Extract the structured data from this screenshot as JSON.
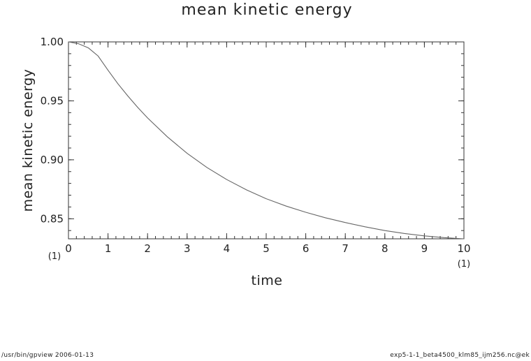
{
  "chart_data": {
    "type": "line",
    "title": "mean kinetic energy",
    "xlabel": "time",
    "ylabel": "mean kinetic energy",
    "x_unit": "(1)",
    "y_unit": "(1)",
    "xlim": [
      0,
      10
    ],
    "ylim": [
      0.833,
      1.0
    ],
    "x_ticks": [
      0,
      1,
      2,
      3,
      4,
      5,
      6,
      7,
      8,
      9,
      10
    ],
    "x_tick_labels": [
      "0",
      "1",
      "2",
      "3",
      "4",
      "5",
      "6",
      "7",
      "8",
      "9",
      "10"
    ],
    "y_ticks": [
      0.85,
      0.9,
      0.95,
      1.0
    ],
    "y_tick_labels": [
      "0.85",
      "0.90",
      "0.95",
      "1.00"
    ],
    "x_minor_step": 0.2,
    "y_minor_step": 0.01,
    "grid": false,
    "line_color": "#666666",
    "series": [
      {
        "x": [
          0,
          0.25,
          0.5,
          0.75,
          1,
          1.25,
          1.5,
          1.75,
          2,
          2.5,
          3,
          3.5,
          4,
          4.5,
          5,
          5.5,
          6,
          6.5,
          7,
          7.5,
          8,
          8.5,
          9,
          9.5,
          10
        ],
        "values": [
          1.0,
          0.9985,
          0.995,
          0.988,
          0.976,
          0.9645,
          0.9542,
          0.9445,
          0.9355,
          0.9195,
          0.9055,
          0.8935,
          0.8833,
          0.8745,
          0.867,
          0.8608,
          0.8555,
          0.8508,
          0.8468,
          0.8432,
          0.84,
          0.8375,
          0.8355,
          0.834,
          0.833
        ]
      }
    ]
  },
  "footer": {
    "left": "/usr/bin/gpview   2006-01-13",
    "right": "exp5-1-1_beta4500_klm85_ijm256.nc@ek"
  }
}
